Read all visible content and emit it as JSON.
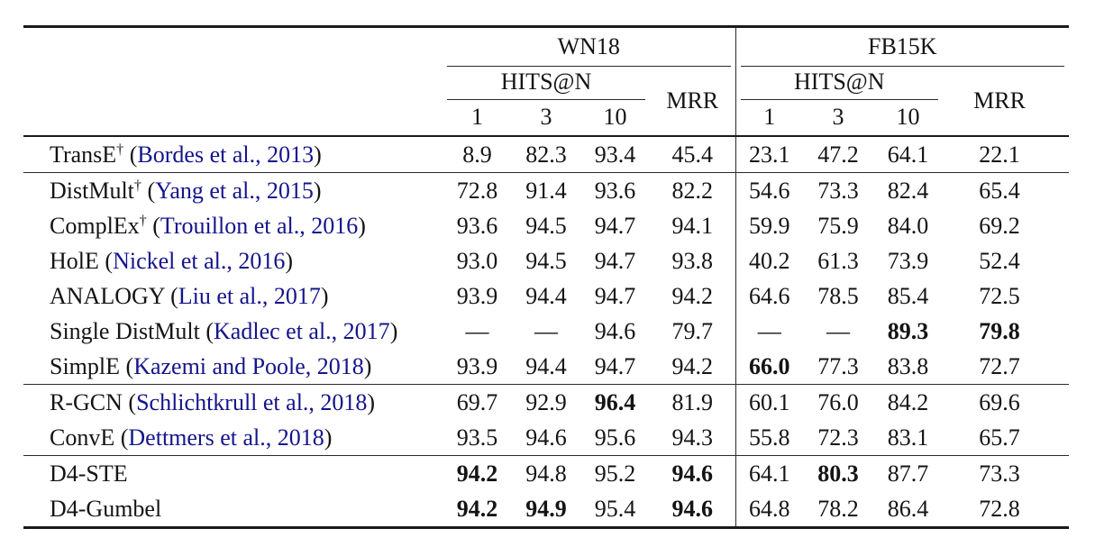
{
  "table": {
    "groups": [
      {
        "label": "WN18"
      },
      {
        "label": "FB15K"
      }
    ],
    "hits_label": "HITS@N",
    "mrr_label": "MRR",
    "hits_cols": [
      "1",
      "3",
      "10"
    ],
    "colors": {
      "citation_link": "#14148C",
      "text": "#141414",
      "rule": "#1a1a1a"
    },
    "chart_data": {
      "type": "table",
      "column_groups": [
        "WN18",
        "FB15K"
      ],
      "columns_per_group": [
        "HITS@1",
        "HITS@3",
        "HITS@10",
        "MRR"
      ]
    },
    "rows": [
      {
        "model": "TransE",
        "dagger": "†",
        "citation": "Bordes et al., 2013",
        "rule_above": false,
        "values": [
          "8.9",
          "82.3",
          "93.4",
          "45.4",
          "23.1",
          "47.2",
          "64.1",
          "22.1"
        ],
        "bold": [
          false,
          false,
          false,
          false,
          false,
          false,
          false,
          false
        ]
      },
      {
        "model": "DistMult",
        "dagger": "†",
        "citation": "Yang et al., 2015",
        "rule_above": true,
        "values": [
          "72.8",
          "91.4",
          "93.6",
          "82.2",
          "54.6",
          "73.3",
          "82.4",
          "65.4"
        ],
        "bold": [
          false,
          false,
          false,
          false,
          false,
          false,
          false,
          false
        ]
      },
      {
        "model": "ComplEx",
        "dagger": "†",
        "citation": "Trouillon et al., 2016",
        "rule_above": false,
        "values": [
          "93.6",
          "94.5",
          "94.7",
          "94.1",
          "59.9",
          "75.9",
          "84.0",
          "69.2"
        ],
        "bold": [
          false,
          false,
          false,
          false,
          false,
          false,
          false,
          false
        ]
      },
      {
        "model": "HolE",
        "dagger": "",
        "citation": "Nickel et al., 2016",
        "rule_above": false,
        "values": [
          "93.0",
          "94.5",
          "94.7",
          "93.8",
          "40.2",
          "61.3",
          "73.9",
          "52.4"
        ],
        "bold": [
          false,
          false,
          false,
          false,
          false,
          false,
          false,
          false
        ]
      },
      {
        "model": "ANALOGY",
        "dagger": "",
        "citation": "Liu et al., 2017",
        "rule_above": false,
        "values": [
          "93.9",
          "94.4",
          "94.7",
          "94.2",
          "64.6",
          "78.5",
          "85.4",
          "72.5"
        ],
        "bold": [
          false,
          false,
          false,
          false,
          false,
          false,
          false,
          false
        ]
      },
      {
        "model": "Single DistMult",
        "dagger": "",
        "citation": "Kadlec et al., 2017",
        "rule_above": false,
        "values": [
          "—",
          "—",
          "94.6",
          "79.7",
          "—",
          "—",
          "89.3",
          "79.8"
        ],
        "bold": [
          false,
          false,
          false,
          false,
          false,
          false,
          true,
          true
        ]
      },
      {
        "model": "SimplE",
        "dagger": "",
        "citation": "Kazemi and Poole, 2018",
        "rule_above": false,
        "values": [
          "93.9",
          "94.4",
          "94.7",
          "94.2",
          "66.0",
          "77.3",
          "83.8",
          "72.7"
        ],
        "bold": [
          false,
          false,
          false,
          false,
          true,
          false,
          false,
          false
        ]
      },
      {
        "model": "R-GCN",
        "dagger": "",
        "citation": "Schlichtkrull et al., 2018",
        "rule_above": true,
        "values": [
          "69.7",
          "92.9",
          "96.4",
          "81.9",
          "60.1",
          "76.0",
          "84.2",
          "69.6"
        ],
        "bold": [
          false,
          false,
          true,
          false,
          false,
          false,
          false,
          false
        ]
      },
      {
        "model": "ConvE",
        "dagger": "",
        "citation": "Dettmers et al., 2018",
        "rule_above": false,
        "values": [
          "93.5",
          "94.6",
          "95.6",
          "94.3",
          "55.8",
          "72.3",
          "83.1",
          "65.7"
        ],
        "bold": [
          false,
          false,
          false,
          false,
          false,
          false,
          false,
          false
        ]
      },
      {
        "model": "D4-STE",
        "dagger": "",
        "citation": null,
        "rule_above": true,
        "values": [
          "94.2",
          "94.8",
          "95.2",
          "94.6",
          "64.1",
          "80.3",
          "87.7",
          "73.3"
        ],
        "bold": [
          true,
          false,
          false,
          true,
          false,
          true,
          false,
          false
        ]
      },
      {
        "model": "D4-Gumbel",
        "dagger": "",
        "citation": null,
        "rule_above": false,
        "values": [
          "94.2",
          "94.9",
          "95.4",
          "94.6",
          "64.8",
          "78.2",
          "86.4",
          "72.8"
        ],
        "bold": [
          true,
          true,
          false,
          true,
          false,
          false,
          false,
          false
        ]
      }
    ]
  }
}
